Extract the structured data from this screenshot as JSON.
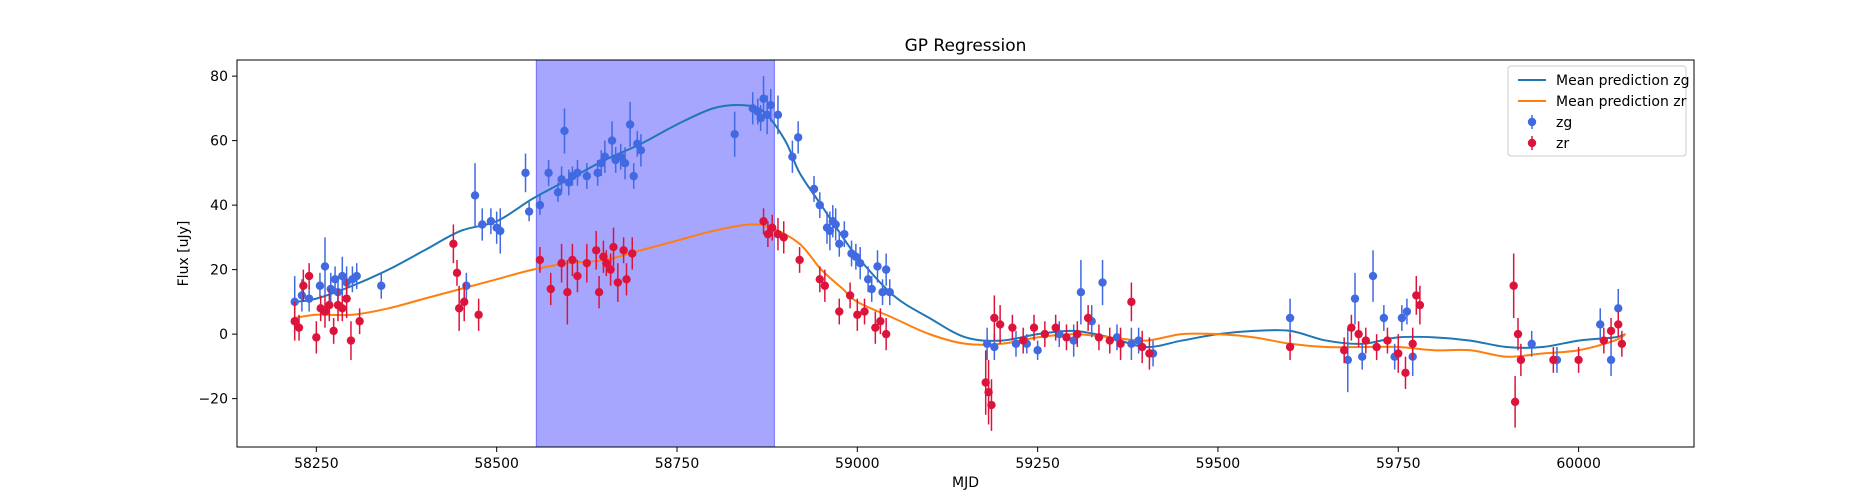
{
  "chart_data": {
    "type": "scatter",
    "title": "GP Regression",
    "xlabel": "MJD",
    "ylabel": "Flux [uJy]",
    "xlim": [
      58140,
      60160
    ],
    "ylim": [
      -35,
      85
    ],
    "xticks": [
      58250,
      58500,
      58750,
      59000,
      59250,
      59500,
      59750,
      60000
    ],
    "yticks": [
      -20,
      0,
      20,
      40,
      60,
      80
    ],
    "legend_position": "upper right",
    "shaded_region": {
      "x_start": 58555,
      "x_end": 58885,
      "color": "#a6a6ff"
    },
    "lines": [
      {
        "name": "Mean prediction zg",
        "color": "#1f77b4",
        "points": [
          [
            58220,
            10
          ],
          [
            58250,
            11
          ],
          [
            58300,
            15
          ],
          [
            58350,
            20
          ],
          [
            58400,
            26
          ],
          [
            58450,
            32
          ],
          [
            58500,
            35
          ],
          [
            58550,
            42
          ],
          [
            58600,
            48
          ],
          [
            58650,
            54
          ],
          [
            58700,
            59
          ],
          [
            58750,
            65
          ],
          [
            58800,
            70
          ],
          [
            58840,
            71
          ],
          [
            58870,
            69
          ],
          [
            58900,
            60
          ],
          [
            58920,
            50
          ],
          [
            58950,
            40
          ],
          [
            58980,
            30
          ],
          [
            59000,
            24
          ],
          [
            59050,
            12
          ],
          [
            59100,
            5
          ],
          [
            59150,
            -1
          ],
          [
            59200,
            -2
          ],
          [
            59250,
            0
          ],
          [
            59300,
            1
          ],
          [
            59350,
            -1
          ],
          [
            59400,
            -4
          ],
          [
            59450,
            -2
          ],
          [
            59500,
            0
          ],
          [
            59550,
            1
          ],
          [
            59600,
            1
          ],
          [
            59650,
            -2
          ],
          [
            59700,
            -3
          ],
          [
            59750,
            -1
          ],
          [
            59800,
            -1
          ],
          [
            59850,
            -2
          ],
          [
            59900,
            -4
          ],
          [
            59950,
            -4
          ],
          [
            60000,
            -2
          ],
          [
            60050,
            -1
          ],
          [
            60065,
            0
          ]
        ]
      },
      {
        "name": "Mean prediction zr",
        "color": "#ff7f0e",
        "points": [
          [
            58220,
            5
          ],
          [
            58250,
            6
          ],
          [
            58300,
            6
          ],
          [
            58350,
            8
          ],
          [
            58400,
            11
          ],
          [
            58450,
            14
          ],
          [
            58500,
            17
          ],
          [
            58550,
            20
          ],
          [
            58600,
            22
          ],
          [
            58650,
            23
          ],
          [
            58700,
            26
          ],
          [
            58750,
            29
          ],
          [
            58800,
            32
          ],
          [
            58850,
            34
          ],
          [
            58880,
            33
          ],
          [
            58920,
            28
          ],
          [
            58950,
            20
          ],
          [
            58980,
            14
          ],
          [
            59000,
            10
          ],
          [
            59050,
            5
          ],
          [
            59100,
            0
          ],
          [
            59150,
            -3
          ],
          [
            59200,
            -3
          ],
          [
            59250,
            -1
          ],
          [
            59300,
            0
          ],
          [
            59350,
            -1
          ],
          [
            59400,
            -2
          ],
          [
            59450,
            0
          ],
          [
            59500,
            0
          ],
          [
            59550,
            -1
          ],
          [
            59600,
            -3
          ],
          [
            59650,
            -4
          ],
          [
            59700,
            -4
          ],
          [
            59750,
            -4
          ],
          [
            59800,
            -5
          ],
          [
            59850,
            -5
          ],
          [
            59900,
            -7
          ],
          [
            59950,
            -6
          ],
          [
            60000,
            -5
          ],
          [
            60050,
            -2
          ],
          [
            60065,
            0
          ]
        ]
      }
    ],
    "series": [
      {
        "name": "zg",
        "color": "#4169e1",
        "points": [
          [
            58220,
            10,
            8
          ],
          [
            58230,
            12,
            5
          ],
          [
            58240,
            11,
            4
          ],
          [
            58255,
            15,
            4
          ],
          [
            58262,
            21,
            9
          ],
          [
            58270,
            14,
            5
          ],
          [
            58276,
            17,
            4
          ],
          [
            58280,
            13,
            5
          ],
          [
            58286,
            18,
            6
          ],
          [
            58292,
            16,
            5
          ],
          [
            58300,
            17,
            4
          ],
          [
            58306,
            18,
            4
          ],
          [
            58340,
            15,
            4
          ],
          [
            58458,
            15,
            4
          ],
          [
            58470,
            43,
            10
          ],
          [
            58480,
            34,
            5
          ],
          [
            58492,
            35,
            4
          ],
          [
            58500,
            33,
            5
          ],
          [
            58505,
            32,
            7
          ],
          [
            58540,
            50,
            6
          ],
          [
            58545,
            38,
            3
          ],
          [
            58560,
            40,
            3
          ],
          [
            58572,
            50,
            4
          ],
          [
            58585,
            44,
            3
          ],
          [
            58590,
            48,
            4
          ],
          [
            58594,
            63,
            7
          ],
          [
            58600,
            47,
            4
          ],
          [
            58605,
            49,
            3
          ],
          [
            58612,
            50,
            4
          ],
          [
            58625,
            49,
            4
          ],
          [
            58640,
            50,
            4
          ],
          [
            58645,
            53,
            4
          ],
          [
            58650,
            55,
            5
          ],
          [
            58660,
            60,
            6
          ],
          [
            58665,
            54,
            4
          ],
          [
            58672,
            55,
            4
          ],
          [
            58678,
            53,
            5
          ],
          [
            58685,
            65,
            7
          ],
          [
            58690,
            49,
            4
          ],
          [
            58695,
            59,
            4
          ],
          [
            58700,
            57,
            5
          ],
          [
            58830,
            62,
            7
          ],
          [
            58855,
            70,
            5
          ],
          [
            58862,
            69,
            4
          ],
          [
            58866,
            67,
            4
          ],
          [
            58870,
            73,
            7
          ],
          [
            58875,
            68,
            6
          ],
          [
            58880,
            71,
            5
          ],
          [
            58890,
            68,
            6
          ],
          [
            58910,
            55,
            5
          ],
          [
            58918,
            61,
            5
          ],
          [
            58940,
            45,
            4
          ],
          [
            58948,
            40,
            4
          ],
          [
            58958,
            33,
            5
          ],
          [
            58962,
            32,
            6
          ],
          [
            58966,
            35,
            5
          ],
          [
            58970,
            34,
            5
          ],
          [
            58975,
            28,
            4
          ],
          [
            58982,
            31,
            4
          ],
          [
            58992,
            25,
            4
          ],
          [
            58998,
            24,
            4
          ],
          [
            59004,
            22,
            5
          ],
          [
            59015,
            17,
            4
          ],
          [
            59020,
            14,
            4
          ],
          [
            59028,
            21,
            5
          ],
          [
            59035,
            13,
            4
          ],
          [
            59040,
            20,
            5
          ],
          [
            59045,
            13,
            4
          ],
          [
            59180,
            -3,
            5
          ],
          [
            59190,
            -4,
            4
          ],
          [
            59220,
            -3,
            4
          ],
          [
            59235,
            -3,
            3
          ],
          [
            59250,
            -5,
            3
          ],
          [
            59280,
            0,
            4
          ],
          [
            59300,
            -2,
            5
          ],
          [
            59310,
            13,
            10
          ],
          [
            59325,
            4,
            5
          ],
          [
            59340,
            16,
            7
          ],
          [
            59360,
            -1,
            4
          ],
          [
            59380,
            -3,
            5
          ],
          [
            59390,
            -2,
            4
          ],
          [
            59410,
            -6,
            4
          ],
          [
            59600,
            5,
            6
          ],
          [
            59680,
            -8,
            10
          ],
          [
            59690,
            11,
            8
          ],
          [
            59700,
            -7,
            4
          ],
          [
            59715,
            18,
            8
          ],
          [
            59730,
            5,
            4
          ],
          [
            59745,
            -7,
            4
          ],
          [
            59755,
            5,
            4
          ],
          [
            59762,
            7,
            4
          ],
          [
            59770,
            -7,
            6
          ],
          [
            59935,
            -3,
            4
          ],
          [
            59970,
            -8,
            4
          ],
          [
            60030,
            3,
            5
          ],
          [
            60045,
            -8,
            5
          ],
          [
            60055,
            8,
            6
          ]
        ]
      },
      {
        "name": "zr",
        "color": "#dc143c",
        "points": [
          [
            58220,
            4,
            6
          ],
          [
            58226,
            2,
            4
          ],
          [
            58232,
            15,
            5
          ],
          [
            58240,
            18,
            4
          ],
          [
            58250,
            -1,
            5
          ],
          [
            58256,
            8,
            4
          ],
          [
            58262,
            7,
            5
          ],
          [
            58268,
            9,
            5
          ],
          [
            58274,
            1,
            4
          ],
          [
            58280,
            9,
            5
          ],
          [
            58286,
            8,
            4
          ],
          [
            58292,
            11,
            6
          ],
          [
            58298,
            -2,
            6
          ],
          [
            58310,
            4,
            4
          ],
          [
            58440,
            28,
            6
          ],
          [
            58445,
            19,
            4
          ],
          [
            58448,
            8,
            7
          ],
          [
            58455,
            10,
            6
          ],
          [
            58475,
            6,
            5
          ],
          [
            58560,
            23,
            4
          ],
          [
            58575,
            14,
            5
          ],
          [
            58590,
            22,
            6
          ],
          [
            58598,
            13,
            10
          ],
          [
            58605,
            23,
            5
          ],
          [
            58612,
            18,
            5
          ],
          [
            58625,
            22,
            6
          ],
          [
            58638,
            26,
            6
          ],
          [
            58642,
            13,
            5
          ],
          [
            58648,
            24,
            5
          ],
          [
            58652,
            22,
            4
          ],
          [
            58658,
            20,
            5
          ],
          [
            58662,
            27,
            6
          ],
          [
            58668,
            16,
            6
          ],
          [
            58676,
            26,
            4
          ],
          [
            58680,
            17,
            5
          ],
          [
            58688,
            25,
            5
          ],
          [
            58870,
            35,
            4
          ],
          [
            58876,
            31,
            4
          ],
          [
            58882,
            33,
            4
          ],
          [
            58890,
            31,
            5
          ],
          [
            58898,
            30,
            5
          ],
          [
            58920,
            23,
            4
          ],
          [
            58948,
            17,
            4
          ],
          [
            58955,
            15,
            5
          ],
          [
            58975,
            7,
            4
          ],
          [
            58990,
            12,
            4
          ],
          [
            59000,
            6,
            5
          ],
          [
            59010,
            7,
            4
          ],
          [
            59025,
            2,
            5
          ],
          [
            59032,
            4,
            4
          ],
          [
            59040,
            0,
            5
          ],
          [
            59178,
            -15,
            10
          ],
          [
            59182,
            -18,
            10
          ],
          [
            59186,
            -22,
            8
          ],
          [
            59190,
            5,
            7
          ],
          [
            59198,
            3,
            6
          ],
          [
            59215,
            2,
            4
          ],
          [
            59230,
            -2,
            4
          ],
          [
            59245,
            2,
            4
          ],
          [
            59260,
            0,
            4
          ],
          [
            59275,
            2,
            4
          ],
          [
            59290,
            -1,
            4
          ],
          [
            59305,
            0,
            4
          ],
          [
            59320,
            5,
            4
          ],
          [
            59335,
            -1,
            4
          ],
          [
            59350,
            -2,
            4
          ],
          [
            59365,
            -3,
            5
          ],
          [
            59380,
            10,
            6
          ],
          [
            59395,
            -4,
            5
          ],
          [
            59405,
            -6,
            5
          ],
          [
            59600,
            -4,
            4
          ],
          [
            59675,
            -5,
            4
          ],
          [
            59685,
            2,
            4
          ],
          [
            59695,
            0,
            4
          ],
          [
            59705,
            -2,
            4
          ],
          [
            59720,
            -4,
            4
          ],
          [
            59735,
            -2,
            4
          ],
          [
            59750,
            -6,
            6
          ],
          [
            59760,
            -12,
            5
          ],
          [
            59770,
            -3,
            5
          ],
          [
            59775,
            12,
            6
          ],
          [
            59780,
            9,
            6
          ],
          [
            59910,
            15,
            10
          ],
          [
            59912,
            -21,
            8
          ],
          [
            59916,
            0,
            5
          ],
          [
            59920,
            -8,
            5
          ],
          [
            59965,
            -8,
            4
          ],
          [
            60000,
            -8,
            4
          ],
          [
            60035,
            -2,
            4
          ],
          [
            60045,
            1,
            4
          ],
          [
            60055,
            3,
            4
          ],
          [
            60060,
            -3,
            4
          ]
        ]
      }
    ]
  }
}
